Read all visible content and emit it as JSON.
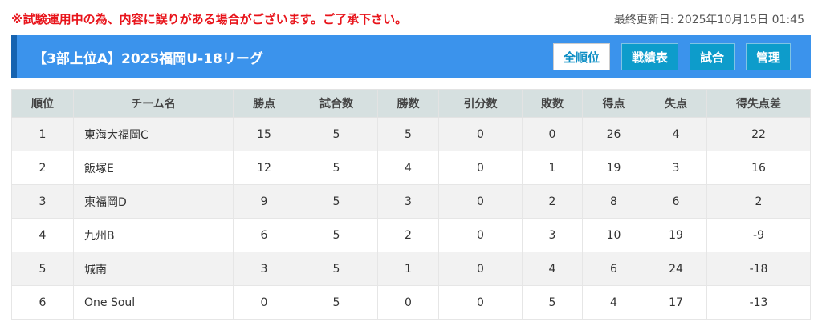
{
  "notice": "※試験運用中の為、内容に誤りがある場合がございます。ご了承下さい。",
  "updated": "最終更新日: 2025年10月15日 01:45",
  "header": {
    "title": "【3部上位A】2025福岡U-18リーグ",
    "buttons": [
      "全順位",
      "戦績表",
      "試合",
      "管理"
    ]
  },
  "table": {
    "columns": [
      "順位",
      "チーム名",
      "勝点",
      "試合数",
      "勝数",
      "引分数",
      "敗数",
      "得点",
      "失点",
      "得失点差"
    ],
    "rows": [
      [
        "1",
        "東海大福岡C",
        "15",
        "5",
        "5",
        "0",
        "0",
        "26",
        "4",
        "22"
      ],
      [
        "2",
        "飯塚E",
        "12",
        "5",
        "4",
        "0",
        "1",
        "19",
        "3",
        "16"
      ],
      [
        "3",
        "東福岡D",
        "9",
        "5",
        "3",
        "0",
        "2",
        "8",
        "6",
        "2"
      ],
      [
        "4",
        "九州B",
        "6",
        "5",
        "2",
        "0",
        "3",
        "10",
        "19",
        "-9"
      ],
      [
        "5",
        "城南",
        "3",
        "5",
        "1",
        "0",
        "4",
        "6",
        "24",
        "-18"
      ],
      [
        "6",
        "One Soul",
        "0",
        "5",
        "0",
        "0",
        "5",
        "4",
        "17",
        "-13"
      ]
    ]
  }
}
